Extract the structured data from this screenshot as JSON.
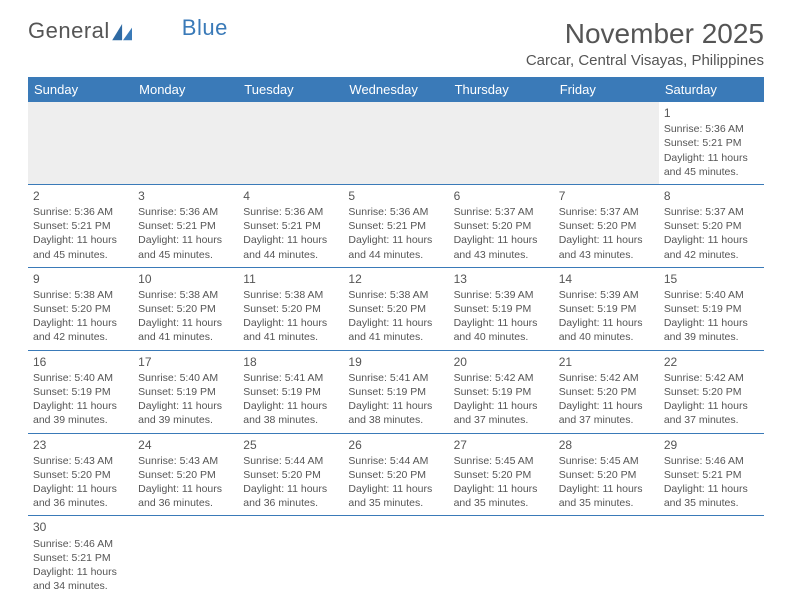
{
  "brand": {
    "part1": "General",
    "part2": "Blue"
  },
  "title": "November 2025",
  "location": "Carcar, Central Visayas, Philippines",
  "colors": {
    "header_bg": "#3a7ab8",
    "header_text": "#ffffff",
    "cell_border": "#3a7ab8",
    "text": "#555555",
    "empty_bg": "#eeeeee",
    "page_bg": "#ffffff"
  },
  "weekdays": [
    "Sunday",
    "Monday",
    "Tuesday",
    "Wednesday",
    "Thursday",
    "Friday",
    "Saturday"
  ],
  "days": {
    "1": {
      "sunrise": "5:36 AM",
      "sunset": "5:21 PM",
      "daylight": "11 hours and 45 minutes."
    },
    "2": {
      "sunrise": "5:36 AM",
      "sunset": "5:21 PM",
      "daylight": "11 hours and 45 minutes."
    },
    "3": {
      "sunrise": "5:36 AM",
      "sunset": "5:21 PM",
      "daylight": "11 hours and 45 minutes."
    },
    "4": {
      "sunrise": "5:36 AM",
      "sunset": "5:21 PM",
      "daylight": "11 hours and 44 minutes."
    },
    "5": {
      "sunrise": "5:36 AM",
      "sunset": "5:21 PM",
      "daylight": "11 hours and 44 minutes."
    },
    "6": {
      "sunrise": "5:37 AM",
      "sunset": "5:20 PM",
      "daylight": "11 hours and 43 minutes."
    },
    "7": {
      "sunrise": "5:37 AM",
      "sunset": "5:20 PM",
      "daylight": "11 hours and 43 minutes."
    },
    "8": {
      "sunrise": "5:37 AM",
      "sunset": "5:20 PM",
      "daylight": "11 hours and 42 minutes."
    },
    "9": {
      "sunrise": "5:38 AM",
      "sunset": "5:20 PM",
      "daylight": "11 hours and 42 minutes."
    },
    "10": {
      "sunrise": "5:38 AM",
      "sunset": "5:20 PM",
      "daylight": "11 hours and 41 minutes."
    },
    "11": {
      "sunrise": "5:38 AM",
      "sunset": "5:20 PM",
      "daylight": "11 hours and 41 minutes."
    },
    "12": {
      "sunrise": "5:38 AM",
      "sunset": "5:20 PM",
      "daylight": "11 hours and 41 minutes."
    },
    "13": {
      "sunrise": "5:39 AM",
      "sunset": "5:19 PM",
      "daylight": "11 hours and 40 minutes."
    },
    "14": {
      "sunrise": "5:39 AM",
      "sunset": "5:19 PM",
      "daylight": "11 hours and 40 minutes."
    },
    "15": {
      "sunrise": "5:40 AM",
      "sunset": "5:19 PM",
      "daylight": "11 hours and 39 minutes."
    },
    "16": {
      "sunrise": "5:40 AM",
      "sunset": "5:19 PM",
      "daylight": "11 hours and 39 minutes."
    },
    "17": {
      "sunrise": "5:40 AM",
      "sunset": "5:19 PM",
      "daylight": "11 hours and 39 minutes."
    },
    "18": {
      "sunrise": "5:41 AM",
      "sunset": "5:19 PM",
      "daylight": "11 hours and 38 minutes."
    },
    "19": {
      "sunrise": "5:41 AM",
      "sunset": "5:19 PM",
      "daylight": "11 hours and 38 minutes."
    },
    "20": {
      "sunrise": "5:42 AM",
      "sunset": "5:19 PM",
      "daylight": "11 hours and 37 minutes."
    },
    "21": {
      "sunrise": "5:42 AM",
      "sunset": "5:20 PM",
      "daylight": "11 hours and 37 minutes."
    },
    "22": {
      "sunrise": "5:42 AM",
      "sunset": "5:20 PM",
      "daylight": "11 hours and 37 minutes."
    },
    "23": {
      "sunrise": "5:43 AM",
      "sunset": "5:20 PM",
      "daylight": "11 hours and 36 minutes."
    },
    "24": {
      "sunrise": "5:43 AM",
      "sunset": "5:20 PM",
      "daylight": "11 hours and 36 minutes."
    },
    "25": {
      "sunrise": "5:44 AM",
      "sunset": "5:20 PM",
      "daylight": "11 hours and 36 minutes."
    },
    "26": {
      "sunrise": "5:44 AM",
      "sunset": "5:20 PM",
      "daylight": "11 hours and 35 minutes."
    },
    "27": {
      "sunrise": "5:45 AM",
      "sunset": "5:20 PM",
      "daylight": "11 hours and 35 minutes."
    },
    "28": {
      "sunrise": "5:45 AM",
      "sunset": "5:20 PM",
      "daylight": "11 hours and 35 minutes."
    },
    "29": {
      "sunrise": "5:46 AM",
      "sunset": "5:21 PM",
      "daylight": "11 hours and 35 minutes."
    },
    "30": {
      "sunrise": "5:46 AM",
      "sunset": "5:21 PM",
      "daylight": "11 hours and 34 minutes."
    }
  },
  "labels": {
    "sunrise": "Sunrise: ",
    "sunset": "Sunset: ",
    "daylight": "Daylight: "
  },
  "grid": [
    [
      null,
      null,
      null,
      null,
      null,
      null,
      "1"
    ],
    [
      "2",
      "3",
      "4",
      "5",
      "6",
      "7",
      "8"
    ],
    [
      "9",
      "10",
      "11",
      "12",
      "13",
      "14",
      "15"
    ],
    [
      "16",
      "17",
      "18",
      "19",
      "20",
      "21",
      "22"
    ],
    [
      "23",
      "24",
      "25",
      "26",
      "27",
      "28",
      "29"
    ],
    [
      "30",
      null,
      null,
      null,
      null,
      null,
      null
    ]
  ]
}
